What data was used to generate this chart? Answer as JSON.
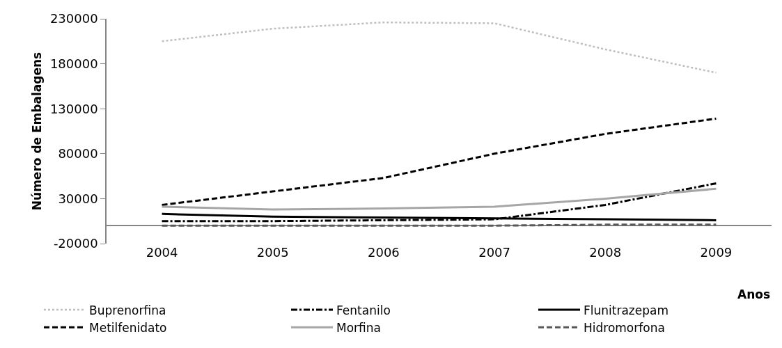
{
  "chart_data": {
    "type": "line",
    "xlabel": "Anos",
    "ylabel": "Número de Embalagens",
    "categories": [
      "2004",
      "2005",
      "2006",
      "2007",
      "2008",
      "2009"
    ],
    "ylim": [
      -20000,
      230000
    ],
    "yticks": [
      -20000,
      30000,
      80000,
      130000,
      180000,
      230000
    ],
    "grid": false,
    "legend": "bottom",
    "marker": "none",
    "series": [
      {
        "name": "Buprenorfina",
        "color": "#bfbfbf",
        "line_style": "dotted",
        "values": [
          205000,
          219000,
          226000,
          225000,
          196000,
          170000
        ]
      },
      {
        "name": "Fentanilo",
        "color": "#000000",
        "line_style": "dashdot",
        "values": [
          5000,
          5000,
          6000,
          7000,
          23000,
          47000
        ]
      },
      {
        "name": "Flunitrazepam",
        "color": "#000000",
        "line_style": "solid",
        "values": [
          13000,
          10000,
          9000,
          8000,
          7000,
          6000
        ]
      },
      {
        "name": "Metilfenidato",
        "color": "#000000",
        "line_style": "dashed",
        "values": [
          23000,
          38000,
          53000,
          80000,
          102000,
          119000
        ]
      },
      {
        "name": "Morfina",
        "color": "#a6a6a6",
        "line_style": "solid",
        "values": [
          21000,
          18000,
          19000,
          21000,
          30000,
          41000
        ]
      },
      {
        "name": "Hidromorfona",
        "color": "#595959",
        "line_style": "dashed",
        "values": [
          0,
          0,
          0,
          0,
          1000,
          1000
        ]
      }
    ]
  }
}
